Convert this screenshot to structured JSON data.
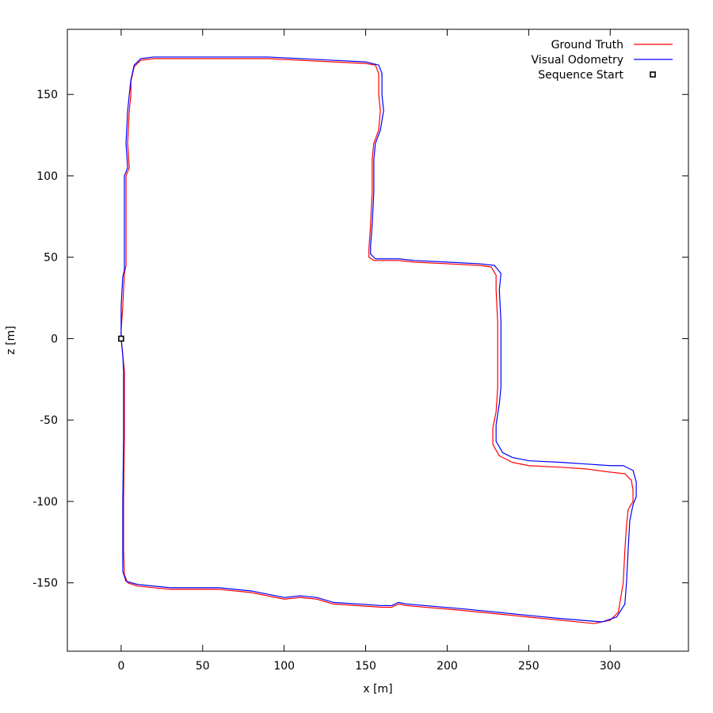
{
  "chart_data": {
    "type": "line",
    "title": "",
    "xlabel": "x [m]",
    "ylabel": "z [m]",
    "xlim": [
      -33,
      348
    ],
    "ylim": [
      -192,
      190
    ],
    "xticks": [
      0,
      50,
      100,
      150,
      200,
      250,
      300
    ],
    "yticks": [
      150,
      100,
      50,
      0,
      -50,
      -100,
      -150
    ],
    "grid": false,
    "legend_position": "top-right",
    "legend": [
      {
        "label": "Ground Truth",
        "color": "#ff0000",
        "marker": "line"
      },
      {
        "label": "Visual Odometry",
        "color": "#0000ff",
        "marker": "line"
      },
      {
        "label": "Sequence Start",
        "color": "#000000",
        "marker": "square"
      }
    ],
    "series": [
      {
        "name": "Ground Truth",
        "color": "#ff0000",
        "points": [
          [
            0,
            0
          ],
          [
            1,
            -10
          ],
          [
            2,
            -20
          ],
          [
            2,
            -35
          ],
          [
            2,
            -60
          ],
          [
            1.5,
            -100
          ],
          [
            1.5,
            -130
          ],
          [
            2,
            -145
          ],
          [
            4,
            -150
          ],
          [
            10,
            -152
          ],
          [
            30,
            -154
          ],
          [
            60,
            -154
          ],
          [
            80,
            -156
          ],
          [
            90,
            -158
          ],
          [
            100,
            -160
          ],
          [
            110,
            -159
          ],
          [
            120,
            -160
          ],
          [
            130,
            -163
          ],
          [
            160,
            -165
          ],
          [
            166,
            -165
          ],
          [
            170,
            -163
          ],
          [
            175,
            -164
          ],
          [
            210,
            -167
          ],
          [
            240,
            -170
          ],
          [
            250,
            -171
          ],
          [
            270,
            -173
          ],
          [
            290,
            -175
          ],
          [
            300,
            -173
          ],
          [
            305,
            -168
          ],
          [
            308,
            -150
          ],
          [
            309,
            -130
          ],
          [
            310,
            -115
          ],
          [
            311,
            -105
          ],
          [
            314,
            -100
          ],
          [
            314,
            -93
          ],
          [
            313,
            -87
          ],
          [
            309,
            -83
          ],
          [
            300,
            -82
          ],
          [
            285,
            -80
          ],
          [
            270,
            -79
          ],
          [
            250,
            -78
          ],
          [
            240,
            -76
          ],
          [
            232,
            -72
          ],
          [
            228,
            -65
          ],
          [
            228,
            -55
          ],
          [
            230,
            -45
          ],
          [
            231,
            -30
          ],
          [
            231,
            -10
          ],
          [
            231,
            10
          ],
          [
            230,
            30
          ],
          [
            230,
            39
          ],
          [
            227,
            44
          ],
          [
            220,
            45
          ],
          [
            200,
            46
          ],
          [
            180,
            47
          ],
          [
            170,
            48
          ],
          [
            155,
            48
          ],
          [
            152,
            50
          ],
          [
            152,
            55
          ],
          [
            153,
            70
          ],
          [
            154,
            90
          ],
          [
            154,
            110
          ],
          [
            155,
            120
          ],
          [
            158,
            128
          ],
          [
            159,
            140
          ],
          [
            158,
            150
          ],
          [
            158,
            163
          ],
          [
            156,
            168
          ],
          [
            150,
            169
          ],
          [
            130,
            170
          ],
          [
            110,
            171
          ],
          [
            90,
            172
          ],
          [
            70,
            172
          ],
          [
            40,
            172
          ],
          [
            20,
            172
          ],
          [
            12,
            171
          ],
          [
            8,
            167
          ],
          [
            6,
            158
          ],
          [
            6,
            150
          ],
          [
            5,
            140
          ],
          [
            4,
            120
          ],
          [
            5,
            105
          ],
          [
            3,
            100
          ],
          [
            3,
            80
          ],
          [
            3,
            60
          ],
          [
            3,
            45
          ],
          [
            2,
            40
          ],
          [
            1,
            20
          ],
          [
            0,
            5
          ],
          [
            0,
            0
          ]
        ]
      },
      {
        "name": "Visual Odometry",
        "color": "#0000ff",
        "points": [
          [
            0,
            0
          ],
          [
            1,
            -10
          ],
          [
            1.5,
            -20
          ],
          [
            1.5,
            -35
          ],
          [
            1.5,
            -60
          ],
          [
            1,
            -100
          ],
          [
            1,
            -130
          ],
          [
            1,
            -143
          ],
          [
            3,
            -149
          ],
          [
            10,
            -151
          ],
          [
            30,
            -153
          ],
          [
            60,
            -153
          ],
          [
            80,
            -155
          ],
          [
            90,
            -157
          ],
          [
            100,
            -159
          ],
          [
            110,
            -158
          ],
          [
            120,
            -159
          ],
          [
            130,
            -162
          ],
          [
            160,
            -164
          ],
          [
            166,
            -164
          ],
          [
            170,
            -162
          ],
          [
            175,
            -163
          ],
          [
            210,
            -166
          ],
          [
            240,
            -169
          ],
          [
            250,
            -170
          ],
          [
            270,
            -172
          ],
          [
            295,
            -174
          ],
          [
            304,
            -171
          ],
          [
            309,
            -163
          ],
          [
            310,
            -150
          ],
          [
            311,
            -130
          ],
          [
            312,
            -112
          ],
          [
            314,
            -102
          ],
          [
            316,
            -97
          ],
          [
            316,
            -88
          ],
          [
            314,
            -81
          ],
          [
            308,
            -78
          ],
          [
            300,
            -78
          ],
          [
            285,
            -77
          ],
          [
            270,
            -76
          ],
          [
            250,
            -75
          ],
          [
            240,
            -73
          ],
          [
            234,
            -70
          ],
          [
            230,
            -63
          ],
          [
            230,
            -53
          ],
          [
            232,
            -40
          ],
          [
            233,
            -30
          ],
          [
            233,
            -10
          ],
          [
            233,
            10
          ],
          [
            232,
            30
          ],
          [
            233,
            40
          ],
          [
            229,
            45
          ],
          [
            220,
            46
          ],
          [
            200,
            47
          ],
          [
            180,
            48
          ],
          [
            170,
            49
          ],
          [
            156,
            49
          ],
          [
            153,
            52
          ],
          [
            153,
            57
          ],
          [
            154,
            70
          ],
          [
            155,
            90
          ],
          [
            155,
            110
          ],
          [
            156,
            120
          ],
          [
            159,
            128
          ],
          [
            161,
            140
          ],
          [
            160,
            150
          ],
          [
            160,
            163
          ],
          [
            158,
            168
          ],
          [
            150,
            170
          ],
          [
            130,
            171
          ],
          [
            110,
            172
          ],
          [
            90,
            173
          ],
          [
            70,
            173
          ],
          [
            40,
            173
          ],
          [
            20,
            173
          ],
          [
            12,
            172
          ],
          [
            8,
            168
          ],
          [
            6,
            159
          ],
          [
            5,
            150
          ],
          [
            4,
            140
          ],
          [
            3,
            120
          ],
          [
            4,
            105
          ],
          [
            2,
            100
          ],
          [
            2,
            80
          ],
          [
            2,
            60
          ],
          [
            2,
            42
          ],
          [
            1,
            38
          ],
          [
            0,
            20
          ],
          [
            0,
            5
          ],
          [
            0,
            0
          ]
        ]
      }
    ],
    "markers": [
      {
        "name": "Sequence Start",
        "x": 0,
        "y": 0,
        "shape": "square"
      }
    ]
  }
}
